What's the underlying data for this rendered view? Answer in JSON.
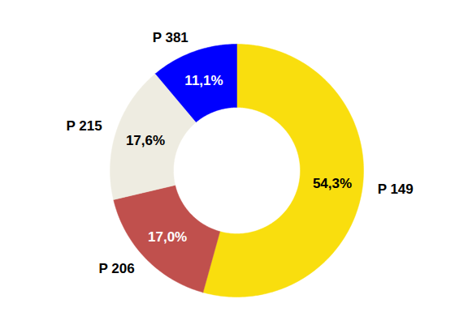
{
  "chart_data": {
    "type": "donut",
    "categories": [
      "P 149",
      "P 206",
      "P 215",
      "P 381"
    ],
    "values": [
      54.3,
      17.0,
      17.6,
      11.1
    ],
    "value_labels": [
      "54,3%",
      "17,0%",
      "17,6%",
      "11,1%"
    ],
    "colors": [
      "#f9de0e",
      "#c0504d",
      "#eeece1",
      "#0000ff"
    ],
    "data_labels": true
  }
}
